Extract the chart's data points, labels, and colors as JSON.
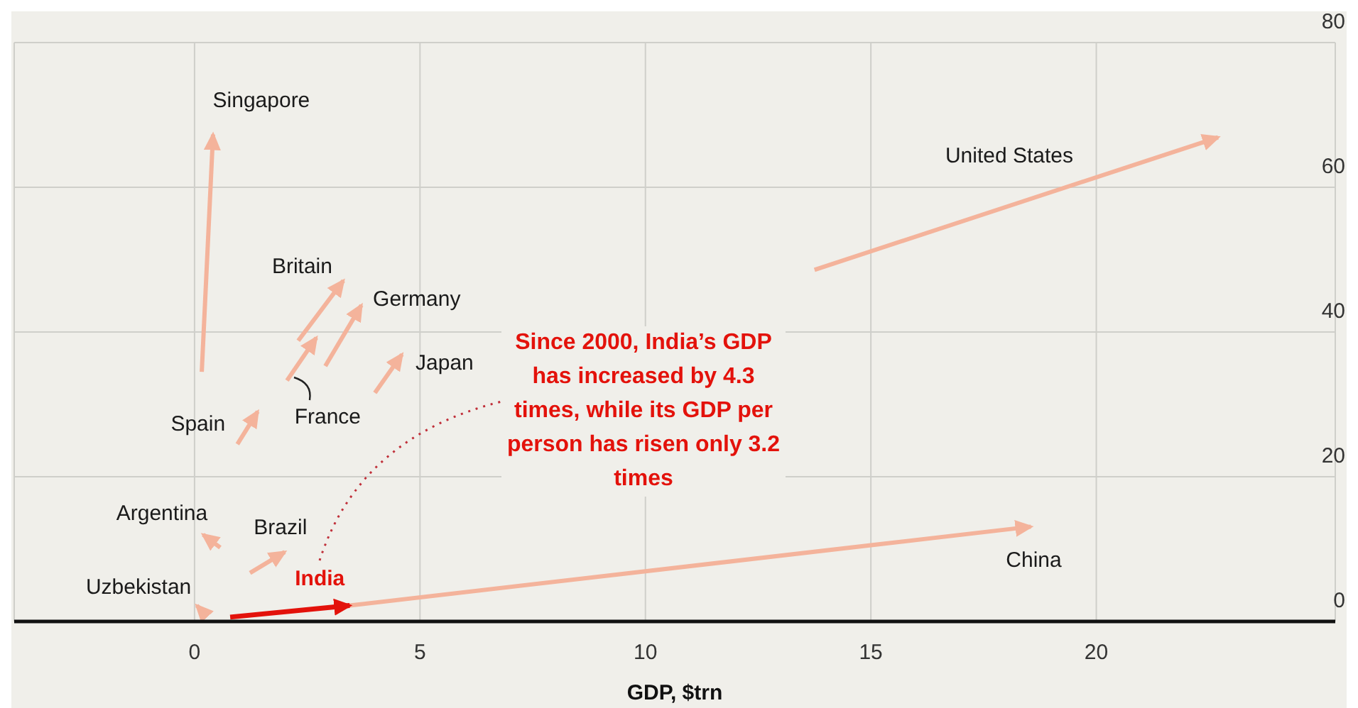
{
  "chart_data": {
    "type": "line",
    "xlabel": "GDP, $trn",
    "annotations": [
      "Since 2000, India’s GDP has increased by 4.3 times, while its GDP per person has risen only 3.2 times"
    ],
    "xlim": [
      -4,
      25.3
    ],
    "xticks": [
      0,
      5,
      10,
      15,
      20
    ],
    "ylim": [
      0,
      80
    ],
    "yticks": [
      0,
      20,
      40,
      60,
      80
    ],
    "grid": true,
    "series": [
      {
        "name": "Singapore",
        "color": "#f4b39b",
        "x": [
          0.16,
          0.41
        ],
        "values": [
          34.5,
          67.3
        ]
      },
      {
        "name": "United States",
        "color": "#f4b39b",
        "x": [
          13.75,
          22.7
        ],
        "values": [
          48.6,
          66.9
        ]
      },
      {
        "name": "Britain",
        "color": "#f4b39b",
        "x": [
          2.3,
          3.3
        ],
        "values": [
          38.8,
          47.1
        ]
      },
      {
        "name": "Germany",
        "color": "#f4b39b",
        "x": [
          2.9,
          3.7
        ],
        "values": [
          35.3,
          43.7
        ]
      },
      {
        "name": "France",
        "color": "#f4b39b",
        "x": [
          2.05,
          2.7
        ],
        "values": [
          33.3,
          39.2
        ]
      },
      {
        "name": "Japan",
        "color": "#f4b39b",
        "x": [
          4.0,
          4.6
        ],
        "values": [
          31.6,
          36.9
        ]
      },
      {
        "name": "Spain",
        "color": "#f4b39b",
        "x": [
          0.95,
          1.4
        ],
        "values": [
          24.5,
          29.0
        ]
      },
      {
        "name": "Argentina",
        "color": "#f4b39b",
        "x": [
          0.57,
          0.19
        ],
        "values": [
          10.2,
          12.0
        ]
      },
      {
        "name": "Brazil",
        "color": "#f4b39b",
        "x": [
          1.23,
          2.0
        ],
        "values": [
          6.7,
          9.6
        ]
      },
      {
        "name": "Uzbekistan",
        "color": "#f4b39b",
        "x": [
          0.2,
          0.05
        ],
        "values": [
          1.2,
          2.2
        ]
      },
      {
        "name": "China",
        "color": "#f4b39b",
        "x": [
          3.44,
          18.55
        ],
        "values": [
          2.2,
          13.1
        ]
      },
      {
        "name": "India",
        "color": "#e3120b",
        "x": [
          0.79,
          3.44
        ],
        "values": [
          0.6,
          2.2
        ]
      }
    ]
  }
}
